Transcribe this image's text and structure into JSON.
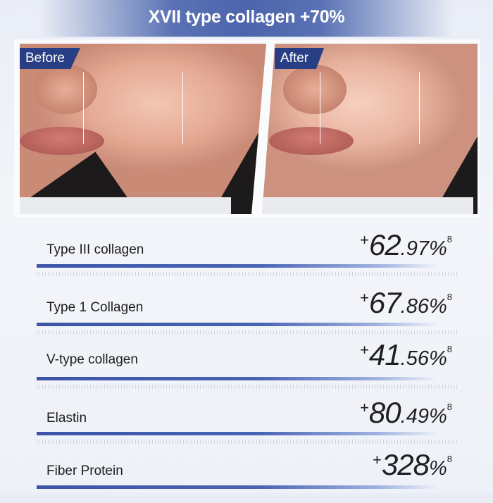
{
  "title": "XVII type collagen +70%",
  "comparison": {
    "before_label": "Before",
    "after_label": "After"
  },
  "metrics": [
    {
      "label": "Type III collagen",
      "plus": "+",
      "integer": "62",
      "decimal": ".97",
      "unit": "%",
      "footnote": "8"
    },
    {
      "label": "Type 1 Collagen",
      "plus": "+",
      "integer": "67",
      "decimal": ".86",
      "unit": "%",
      "footnote": "8"
    },
    {
      "label": "V-type collagen",
      "plus": "+",
      "integer": "41",
      "decimal": ".56",
      "unit": "%",
      "footnote": "8"
    },
    {
      "label": "Elastin",
      "plus": "+",
      "integer": "80",
      "decimal": ".49",
      "unit": "%",
      "footnote": "8"
    },
    {
      "label": "Fiber Protein",
      "plus": "+",
      "integer": "328",
      "decimal": "",
      "unit": "%",
      "footnote": "8"
    }
  ],
  "colors": {
    "accent": "#283f85",
    "bar": "#4862b4"
  }
}
